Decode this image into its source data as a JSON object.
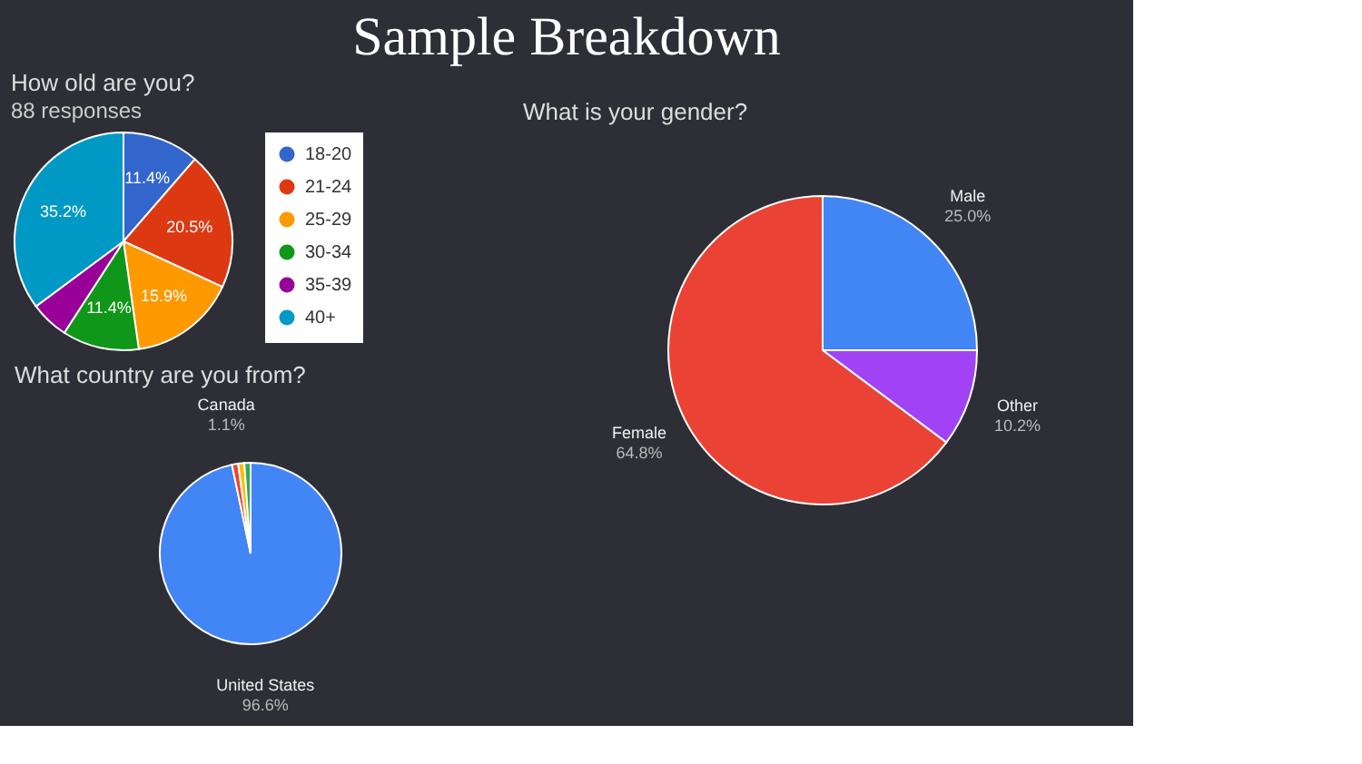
{
  "chart_data": [
    {
      "type": "other",
      "title": "Sample Breakdown"
    },
    {
      "type": "pie",
      "title": "How old are you?",
      "subtitle": "88 responses",
      "categories": [
        "18-20",
        "21-24",
        "25-29",
        "30-34",
        "35-39",
        "40+"
      ],
      "values": [
        11.4,
        20.5,
        15.9,
        11.4,
        5.7,
        35.2
      ],
      "colors": [
        "#3366cc",
        "#dc3912",
        "#ff9900",
        "#109618",
        "#990099",
        "#0099c6"
      ],
      "value_labels": [
        "11.4%",
        "20.5%",
        "15.9%",
        "11.4%",
        null,
        "35.2%"
      ],
      "legend": "right"
    },
    {
      "type": "pie",
      "title": "What is your gender?",
      "categories": [
        "Male",
        "Other",
        "Female"
      ],
      "values": [
        25.0,
        10.2,
        64.8
      ],
      "colors": [
        "#4285f4",
        "#a142f4",
        "#ea4335"
      ],
      "value_labels": [
        "25.0%",
        "10.2%",
        "64.8%"
      ],
      "legend": false
    },
    {
      "type": "pie",
      "title": "What country are you from?",
      "categories": [
        "United States",
        "Canada",
        null,
        null
      ],
      "values": [
        96.6,
        1.1,
        1.1,
        1.1
      ],
      "colors": [
        "#4285f4",
        "#ea4335",
        "#fbbc04",
        "#34a853"
      ],
      "value_labels": [
        "96.6%",
        "1.1%",
        null,
        null
      ],
      "legend": false
    }
  ]
}
